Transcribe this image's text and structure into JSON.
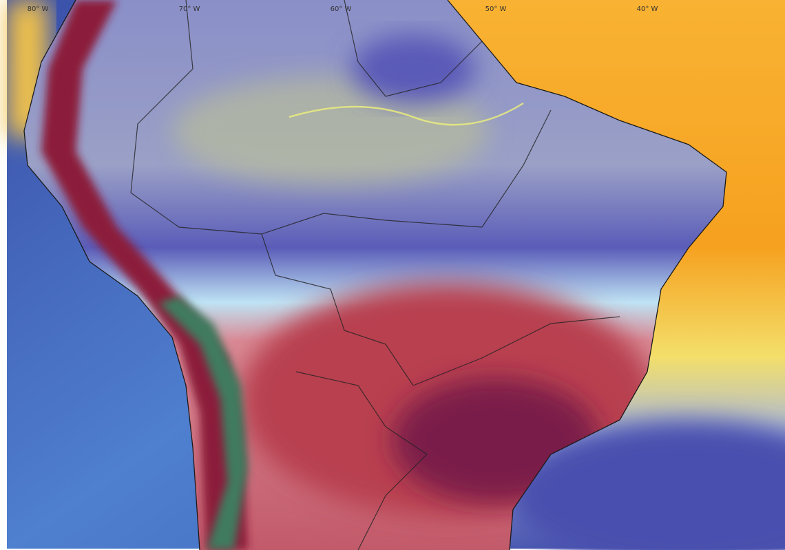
{
  "map": {
    "longitude_labels": [
      "80° W",
      "70° W",
      "60° W",
      "50° W",
      "40° W"
    ]
  }
}
